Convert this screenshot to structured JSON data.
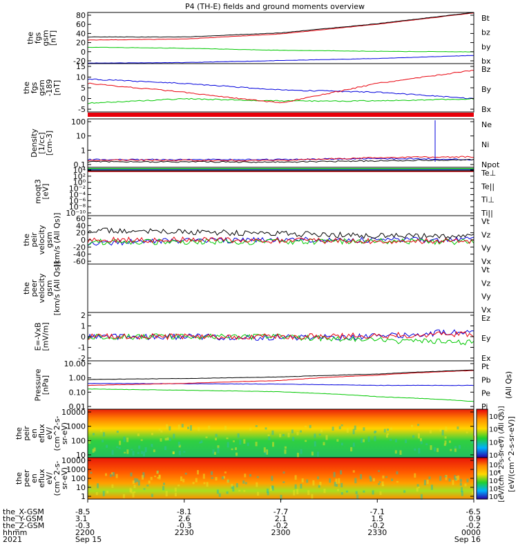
{
  "title": "P4 (TH-E) fields and ground moments overview",
  "colors": {
    "black": "#000000",
    "red": "#e8000b",
    "green": "#00c800",
    "blue": "#0000dd"
  },
  "panels": [
    {
      "id": "fgs_gsm",
      "ylabel": [
        "the",
        "fgs",
        "gsm",
        "[nT]"
      ],
      "ticks": [
        "80",
        "60",
        "40",
        "20",
        "0",
        "-20"
      ],
      "legend": [
        {
          "text": "Bt",
          "color": "black"
        },
        {
          "text": "bz",
          "color": "red"
        },
        {
          "text": "by",
          "color": "green"
        },
        {
          "text": "bx",
          "color": "blue"
        }
      ]
    },
    {
      "id": "fgs_gsm_dsl",
      "ylabel": [
        "the",
        "fgs",
        "gsm",
        "-189",
        "[nT]"
      ],
      "ticks": [
        "15",
        "10",
        "5",
        "0",
        "-5"
      ],
      "legend": [
        {
          "text": "Bz",
          "color": "red"
        },
        {
          "text": "By",
          "color": "green"
        },
        {
          "text": "Bx",
          "color": "blue"
        }
      ]
    },
    {
      "id": "density",
      "ylabel": [
        "Density",
        "[1/cc]",
        "[cm-3]"
      ],
      "ticks": [
        "100",
        "10",
        "1",
        "0.1"
      ],
      "legend": [
        {
          "text": "Ne",
          "color": "red"
        },
        {
          "text": "Ni",
          "color": "black"
        },
        {
          "text": "Npot",
          "color": "blue"
        }
      ]
    },
    {
      "id": "temperature",
      "ylabel": [
        "moqt3",
        "[eV]"
      ],
      "ticks": [
        "10⁴",
        "10²",
        "10⁰",
        "10⁻²",
        "10⁻⁴",
        "10⁻⁶",
        "10⁻⁸",
        "10⁻¹⁰"
      ],
      "legend": [
        {
          "text": "Te⊥",
          "color": "red"
        },
        {
          "text": "Te||",
          "color": "black"
        },
        {
          "text": "Ti⊥",
          "color": "blue"
        },
        {
          "text": "Ti||",
          "color": "green"
        }
      ]
    },
    {
      "id": "peir_velocity",
      "ylabel": [
        "the",
        "peir",
        "velocity",
        "gsm",
        "[km/s (All Qs)]"
      ],
      "ticks": [
        "60",
        "40",
        "20",
        "0",
        "-20",
        "-40",
        "-60"
      ],
      "legend": [
        {
          "text": "Vt",
          "color": "black"
        },
        {
          "text": "Vz",
          "color": "red"
        },
        {
          "text": "Vy",
          "color": "green"
        },
        {
          "text": "Vx",
          "color": "blue"
        }
      ]
    },
    {
      "id": "peer_velocity",
      "ylabel": [
        "the",
        "peer",
        "velocity",
        "gsm",
        "[km/s (All Qs)]"
      ],
      "ticks": [],
      "legend": [
        {
          "text": "Vt",
          "color": "black"
        },
        {
          "text": "Vz",
          "color": "red"
        },
        {
          "text": "Vy",
          "color": "green"
        },
        {
          "text": "Vx",
          "color": "blue"
        }
      ]
    },
    {
      "id": "efield",
      "ylabel": [
        "E=-VxB",
        "[mV/m]"
      ],
      "ticks": [
        "2",
        "1",
        "0",
        "-1",
        "-2"
      ],
      "legend": [
        {
          "text": "Ez",
          "color": "red"
        },
        {
          "text": "Ey",
          "color": "green"
        },
        {
          "text": "Ex",
          "color": "blue"
        }
      ]
    },
    {
      "id": "pressure",
      "ylabel": [
        "Pressure",
        "[nPa]"
      ],
      "ticks": [
        "10.00",
        "1.00",
        "0.10",
        "0.01"
      ],
      "legend": [
        {
          "text": "Pt",
          "color": "black"
        },
        {
          "text": "Pb",
          "color": "red"
        },
        {
          "text": "Pe",
          "color": "green"
        },
        {
          "text": "Pi",
          "color": "blue"
        }
      ],
      "side_label": "(All Qs)"
    },
    {
      "id": "peir_spec",
      "ylabel": [
        "the",
        "peir",
        "en",
        "eflux",
        "eV/",
        "(cm^2-s-",
        "sr-eV)"
      ],
      "ticks": [
        "10000",
        "1000",
        "100",
        "10"
      ]
    },
    {
      "id": "peer_spec",
      "ylabel": [
        "the",
        "peer",
        "en",
        "eflux",
        "eV/",
        "(cm^2-s-",
        "sr-eV)"
      ],
      "ticks": [
        "10000",
        "1000",
        "100",
        "10",
        "1"
      ]
    }
  ],
  "colorbar": {
    "label": "[eV/(cm^2-s-sr-eV)]",
    "label_overlay": "[eV/(cm^2-s-sr-eV) (All Qs)]",
    "top_ticks": [
      "10⁸",
      "10⁶",
      "10⁴",
      "10²"
    ],
    "bottom_ticks": [
      "10⁸",
      "10⁶",
      "10⁴",
      "10²",
      "10⁰"
    ]
  },
  "x_axis": {
    "row_labels": [
      "the_X-GSM",
      "the_Y-GSM",
      "the_Z-GSM",
      "hhmm",
      "2021"
    ],
    "columns": [
      {
        "rows": [
          "-8.5",
          "3.1",
          "-0.3",
          "2200",
          "Sep 15"
        ]
      },
      {
        "rows": [
          "-8.1",
          "2.6",
          "-0.3",
          "2230",
          ""
        ]
      },
      {
        "rows": [
          "-7.7",
          "2.1",
          "-0.2",
          "2300",
          ""
        ]
      },
      {
        "rows": [
          "-7.1",
          "1.5",
          "-0.2",
          "2330",
          ""
        ]
      },
      {
        "rows": [
          "-6.5",
          "0.9",
          "-0.2",
          "0000",
          "Sep 16"
        ]
      }
    ]
  },
  "chart_data": [
    {
      "type": "line",
      "title": "the fgs gsm",
      "ylabel": "[nT]",
      "ylim": [
        -20,
        80
      ],
      "x": [
        "2200",
        "2230",
        "2300",
        "2330",
        "0000"
      ],
      "series": [
        {
          "name": "Bt",
          "values": [
            32,
            32,
            40,
            58,
            80
          ]
        },
        {
          "name": "bz",
          "values": [
            26,
            28,
            38,
            57,
            79
          ]
        },
        {
          "name": "by",
          "values": [
            12,
            10,
            6,
            4,
            3
          ]
        },
        {
          "name": "bx",
          "values": [
            -19,
            -18,
            -14,
            -10,
            -4
          ]
        }
      ]
    },
    {
      "type": "line",
      "title": "the fgs gsm -189",
      "ylabel": "[nT]",
      "ylim": [
        -7,
        15
      ],
      "x": [
        "2200",
        "2230",
        "2300",
        "2330",
        "0000"
      ],
      "series": [
        {
          "name": "Bz",
          "values": [
            6,
            2,
            -3,
            6,
            12
          ]
        },
        {
          "name": "By",
          "values": [
            -3,
            -1,
            -2,
            -2,
            -1
          ]
        },
        {
          "name": "Bx",
          "values": [
            8,
            6,
            3,
            2,
            -1
          ]
        }
      ]
    },
    {
      "type": "line",
      "title": "Density",
      "ylabel": "[cm-3]",
      "ylim": [
        0.1,
        100
      ],
      "x": [
        "2200",
        "2230",
        "2300",
        "2330",
        "0000"
      ],
      "series": [
        {
          "name": "Ne",
          "values": [
            0.28,
            0.27,
            0.26,
            0.4,
            0.45
          ]
        },
        {
          "name": "Ni",
          "values": [
            0.22,
            0.22,
            0.21,
            0.25,
            0.3
          ]
        },
        {
          "name": "Npot",
          "values": [
            0.3,
            0.3,
            0.3,
            0.35,
            0.3
          ]
        }
      ]
    },
    {
      "type": "line",
      "title": "the peir velocity gsm",
      "ylabel": "[km/s (All Qs)]",
      "ylim": [
        -60,
        60
      ],
      "x": [
        "2200",
        "2230",
        "2300",
        "2330",
        "0000"
      ],
      "series": [
        {
          "name": "Vt",
          "values": [
            25,
            20,
            15,
            10,
            10
          ]
        },
        {
          "name": "Vz",
          "values": [
            0,
            0,
            -2,
            -3,
            -2
          ]
        },
        {
          "name": "Vy",
          "values": [
            -5,
            -5,
            -5,
            -3,
            -5
          ]
        },
        {
          "name": "Vx",
          "values": [
            -8,
            -2,
            0,
            0,
            0
          ]
        }
      ]
    },
    {
      "type": "line",
      "title": "E=-VxB",
      "ylabel": "[mV/m]",
      "ylim": [
        -2,
        2
      ],
      "x": [
        "2200",
        "2230",
        "2300",
        "2330",
        "0000"
      ],
      "series": [
        {
          "name": "Ez",
          "values": [
            0,
            0,
            0,
            0.1,
            0.2
          ]
        },
        {
          "name": "Ey",
          "values": [
            0,
            0,
            0,
            -0.3,
            -0.5
          ]
        },
        {
          "name": "Ex",
          "values": [
            0,
            0,
            -0.1,
            0,
            0.5
          ]
        }
      ]
    },
    {
      "type": "line",
      "title": "Pressure",
      "ylabel": "[nPa]",
      "ylim": [
        0.01,
        10
      ],
      "x": [
        "2200",
        "2230",
        "2300",
        "2330",
        "0000"
      ],
      "series": [
        {
          "name": "Pt",
          "values": [
            0.7,
            0.8,
            1.0,
            1.5,
            2.7
          ]
        },
        {
          "name": "Pb",
          "values": [
            0.3,
            0.4,
            0.6,
            1.3,
            2.5
          ]
        },
        {
          "name": "Pe",
          "values": [
            0.18,
            0.15,
            0.12,
            0.06,
            0.03
          ]
        },
        {
          "name": "Pi",
          "values": [
            0.4,
            0.38,
            0.36,
            0.3,
            0.3
          ]
        }
      ]
    }
  ]
}
